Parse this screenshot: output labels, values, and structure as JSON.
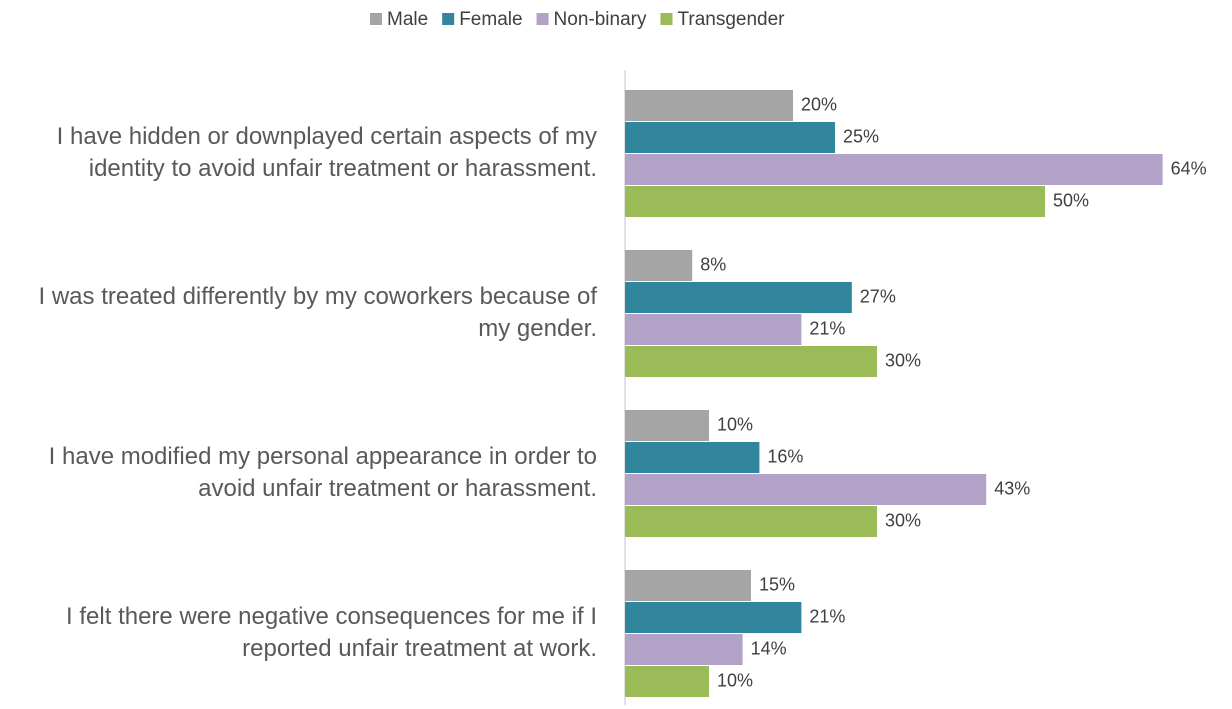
{
  "chart_data": {
    "type": "bar",
    "orientation": "horizontal",
    "categories": [
      "I have hidden or downplayed certain aspects of my identity to avoid unfair treatment or harassment.",
      "I was treated differently by my coworkers because of my gender.",
      "I have modified my personal appearance in order to avoid unfair treatment or harassment.",
      "I felt there were negative consequences for me if I reported unfair treatment at work."
    ],
    "series": [
      {
        "name": "Male",
        "color": "#a5a5a5",
        "values": [
          20,
          8,
          10,
          15
        ],
        "value_labels": [
          "20%",
          "8%",
          "10%",
          "15%"
        ]
      },
      {
        "name": "Female",
        "color": "#31859c",
        "values": [
          25,
          27,
          16,
          21
        ],
        "value_labels": [
          "25%",
          "27%",
          "16%",
          "21%"
        ]
      },
      {
        "name": "Non-binary",
        "color": "#b3a2c7",
        "values": [
          64,
          21,
          43,
          14
        ],
        "value_labels": [
          "64%",
          "21%",
          "43%",
          "14%"
        ]
      },
      {
        "name": "Transgender",
        "color": "#9bbb59",
        "values": [
          50,
          30,
          30,
          10
        ],
        "value_labels": [
          "50%",
          "30%",
          "30%",
          "10%"
        ]
      }
    ],
    "legend": "top"
  }
}
